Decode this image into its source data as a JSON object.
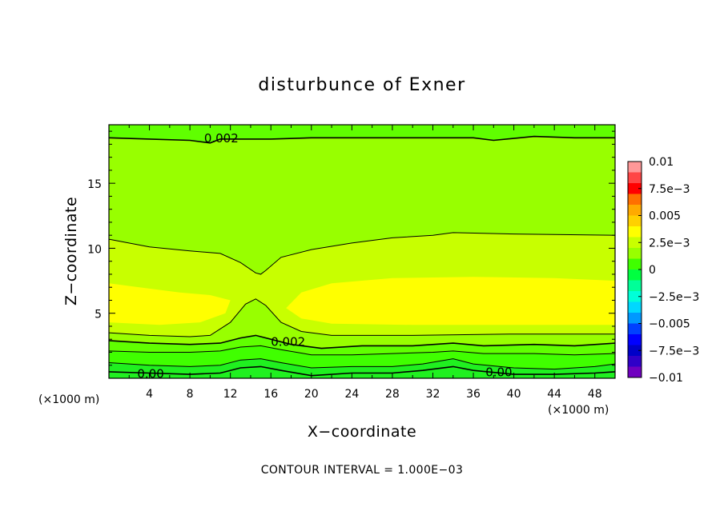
{
  "chart_data": {
    "type": "heatmap",
    "title": "disturbunce of Exner",
    "xlabel": "X−coordinate",
    "ylabel": "Z−coordinate",
    "x_unit_left": "(×1000 m)",
    "x_unit_right": "(×1000 m)",
    "xlim": [
      0,
      50
    ],
    "ylim": [
      0,
      19.5
    ],
    "x_ticks": [
      4,
      8,
      12,
      16,
      20,
      24,
      28,
      32,
      36,
      40,
      44,
      48
    ],
    "y_ticks": [
      5,
      10,
      15
    ],
    "contour_interval_text": "CONTOUR INTERVAL = 1.000E−03",
    "colorbar": {
      "range": [
        -0.01,
        0.01
      ],
      "tick_values": [
        0.01,
        0.0075,
        0.005,
        0.0025,
        0,
        -0.0025,
        -0.005,
        -0.0075,
        -0.01
      ],
      "tick_labels": [
        "0.01",
        "7.5e−3",
        "0.005",
        "2.5e−3",
        "0",
        "−2.5e−3",
        "−0.005",
        "−7.5e−3",
        "−0.01"
      ],
      "colors": [
        "#ff9898",
        "#ff4646",
        "#ff0000",
        "#ff7000",
        "#ffaa00",
        "#ffd000",
        "#ffff00",
        "#c8ff00",
        "#98ff00",
        "#40ff00",
        "#00ff40",
        "#00ff98",
        "#00ffd8",
        "#00d8ff",
        "#0098ff",
        "#0040ff",
        "#0000ff",
        "#0000c8",
        "#3000c8",
        "#7000c0"
      ]
    },
    "fill_colors": {
      "bottom": "#40ff00",
      "low": "#60ff00",
      "mid": "#98ff00",
      "high": "#c8ff00",
      "yellow": "#ffff00",
      "top": "#98ff00",
      "top_edge": "#60ff00"
    },
    "contours": [
      {
        "level": 0.002,
        "label": "0.002",
        "label_at": [
          9.4,
          18.45
        ],
        "points": [
          [
            0,
            18.5
          ],
          [
            4,
            18.4
          ],
          [
            8,
            18.3
          ],
          [
            10,
            18.1
          ],
          [
            11,
            18.4
          ],
          [
            16,
            18.4
          ],
          [
            20,
            18.5
          ],
          [
            28,
            18.5
          ],
          [
            36,
            18.5
          ],
          [
            38,
            18.3
          ],
          [
            42,
            18.6
          ],
          [
            46,
            18.5
          ],
          [
            50,
            18.5
          ]
        ]
      },
      {
        "level": 0.003,
        "points": [
          [
            0,
            10.7
          ],
          [
            4,
            10.1
          ],
          [
            8,
            9.8
          ],
          [
            11,
            9.6
          ],
          [
            13,
            8.9
          ],
          [
            14.5,
            8.1
          ],
          [
            15,
            8.0
          ],
          [
            15.5,
            8.3
          ],
          [
            17,
            9.3
          ],
          [
            20,
            9.9
          ],
          [
            24,
            10.4
          ],
          [
            28,
            10.8
          ],
          [
            32,
            11.0
          ],
          [
            34,
            11.2
          ],
          [
            40,
            11.1
          ],
          [
            50,
            11.0
          ]
        ]
      },
      {
        "level": 0.003,
        "points": [
          [
            0,
            3.5
          ],
          [
            4,
            3.3
          ],
          [
            8,
            3.2
          ],
          [
            10,
            3.3
          ],
          [
            12,
            4.3
          ],
          [
            13.5,
            5.7
          ],
          [
            14.5,
            6.1
          ],
          [
            15.5,
            5.6
          ],
          [
            17,
            4.3
          ],
          [
            19,
            3.6
          ],
          [
            22,
            3.3
          ],
          [
            30,
            3.3
          ],
          [
            40,
            3.4
          ],
          [
            50,
            3.4
          ]
        ]
      },
      {
        "level": 0.002,
        "label": "0.002",
        "label_at": [
          16,
          2.8
        ],
        "points": [
          [
            0,
            2.9
          ],
          [
            4,
            2.7
          ],
          [
            8,
            2.6
          ],
          [
            11,
            2.7
          ],
          [
            13,
            3.1
          ],
          [
            14.5,
            3.3
          ],
          [
            16,
            3.0
          ],
          [
            18,
            2.6
          ],
          [
            21,
            2.3
          ],
          [
            25,
            2.5
          ],
          [
            30,
            2.5
          ],
          [
            34,
            2.7
          ],
          [
            37,
            2.5
          ],
          [
            42,
            2.6
          ],
          [
            46,
            2.5
          ],
          [
            50,
            2.7
          ]
        ]
      },
      {
        "level": 0.001,
        "points": [
          [
            0,
            2.1
          ],
          [
            4,
            2.0
          ],
          [
            8,
            2.0
          ],
          [
            11,
            2.1
          ],
          [
            13,
            2.4
          ],
          [
            15,
            2.5
          ],
          [
            17,
            2.2
          ],
          [
            20,
            1.8
          ],
          [
            24,
            1.8
          ],
          [
            28,
            1.9
          ],
          [
            32,
            2.0
          ],
          [
            34,
            2.1
          ],
          [
            37,
            1.9
          ],
          [
            42,
            1.9
          ],
          [
            46,
            1.8
          ],
          [
            50,
            1.9
          ]
        ]
      },
      {
        "level": 0.0,
        "points": [
          [
            0,
            1.2
          ],
          [
            4,
            1.0
          ],
          [
            8,
            0.9
          ],
          [
            11,
            1.0
          ],
          [
            13,
            1.4
          ],
          [
            15,
            1.5
          ],
          [
            17,
            1.2
          ],
          [
            20,
            0.8
          ],
          [
            24,
            0.9
          ],
          [
            28,
            0.9
          ],
          [
            31,
            1.1
          ],
          [
            34,
            1.5
          ],
          [
            36,
            1.1
          ],
          [
            40,
            0.8
          ],
          [
            44,
            0.7
          ],
          [
            48,
            0.9
          ],
          [
            50,
            1.1
          ]
        ]
      },
      {
        "level": 0.0,
        "label": "0.00",
        "label_at": [
          2.8,
          0.35
        ],
        "points": [
          [
            0,
            0.5
          ],
          [
            4,
            0.4
          ],
          [
            8,
            0.3
          ],
          [
            11,
            0.4
          ],
          [
            13,
            0.8
          ],
          [
            15,
            0.9
          ],
          [
            17,
            0.6
          ],
          [
            20,
            0.2
          ],
          [
            24,
            0.4
          ],
          [
            28,
            0.4
          ],
          [
            31,
            0.6
          ],
          [
            34,
            0.9
          ],
          [
            36,
            0.6
          ],
          [
            40,
            0.3
          ],
          [
            44,
            0.3
          ],
          [
            48,
            0.4
          ],
          [
            50,
            0.5
          ]
        ]
      }
    ],
    "extra_labels": [
      {
        "text": "0.00",
        "at": [
          37.2,
          0.45
        ]
      }
    ]
  }
}
